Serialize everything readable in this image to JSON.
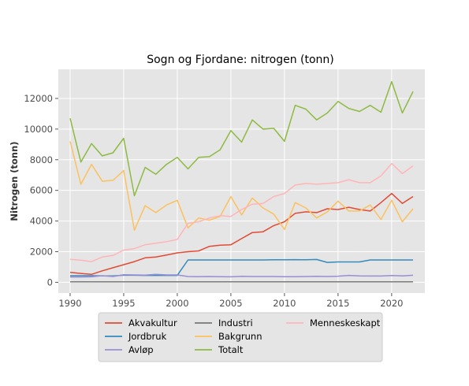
{
  "chart_data": {
    "type": "line",
    "title": "Sogn og Fjordane: nitrogen (tonn)",
    "xlabel": "",
    "ylabel": "Nitrogen (tonn)",
    "xlim": [
      1988.9,
      2023.1
    ],
    "ylim": [
      -700,
      13900
    ],
    "xticks": [
      1990,
      1995,
      2000,
      2005,
      2010,
      2015,
      2020
    ],
    "yticks": [
      0,
      2000,
      4000,
      6000,
      8000,
      10000,
      12000
    ],
    "grid": true,
    "legend_position": "bottom-center",
    "background": "#e5e5e5",
    "x": [
      1990,
      1991,
      1992,
      1993,
      1994,
      1995,
      1996,
      1997,
      1998,
      1999,
      2000,
      2001,
      2002,
      2003,
      2004,
      2005,
      2006,
      2007,
      2008,
      2009,
      2010,
      2011,
      2012,
      2013,
      2014,
      2015,
      2016,
      2017,
      2018,
      2019,
      2020,
      2021,
      2022
    ],
    "series": [
      {
        "name": "Akvakultur",
        "color": "#e24a33",
        "values": [
          650,
          580,
          520,
          750,
          950,
          1150,
          1350,
          1600,
          1650,
          1780,
          1920,
          2000,
          2050,
          2350,
          2420,
          2450,
          2850,
          3250,
          3300,
          3700,
          3950,
          4500,
          4600,
          4550,
          4800,
          4750,
          4900,
          4750,
          4650,
          5200,
          5800,
          5150,
          5600
        ]
      },
      {
        "name": "Jordbruk",
        "color": "#348abd",
        "values": [
          430,
          430,
          430,
          420,
          420,
          460,
          460,
          450,
          450,
          450,
          450,
          1460,
          1460,
          1460,
          1460,
          1460,
          1460,
          1460,
          1460,
          1470,
          1470,
          1480,
          1470,
          1490,
          1300,
          1330,
          1330,
          1330,
          1460,
          1460,
          1460,
          1460,
          1460
        ]
      },
      {
        "name": "Avløp",
        "color": "#988ed5",
        "values": [
          350,
          350,
          360,
          430,
          380,
          500,
          480,
          470,
          520,
          480,
          480,
          380,
          370,
          380,
          370,
          360,
          390,
          380,
          380,
          380,
          370,
          370,
          380,
          390,
          380,
          400,
          450,
          420,
          410,
          410,
          440,
          420,
          460
        ]
      },
      {
        "name": "Industri",
        "color": "#777777",
        "values": [
          30,
          30,
          30,
          30,
          30,
          30,
          30,
          30,
          30,
          30,
          30,
          30,
          30,
          30,
          30,
          30,
          30,
          30,
          30,
          30,
          30,
          30,
          30,
          30,
          30,
          30,
          30,
          30,
          30,
          30,
          30,
          30,
          30
        ]
      },
      {
        "name": "Bakgrunn",
        "color": "#fbc15e",
        "values": [
          9200,
          6400,
          7700,
          6600,
          6650,
          7300,
          3400,
          5000,
          4550,
          5050,
          5350,
          3550,
          4200,
          4050,
          4300,
          5600,
          4400,
          5500,
          4850,
          4450,
          3450,
          5200,
          4850,
          4200,
          4600,
          5300,
          4650,
          4650,
          5050,
          4100,
          5350,
          3950,
          4800
        ]
      },
      {
        "name": "Totalt",
        "color": "#8eba42",
        "values": [
          10700,
          7850,
          9050,
          8250,
          8450,
          9400,
          5650,
          7500,
          7050,
          7700,
          8150,
          7400,
          8150,
          8200,
          8650,
          9900,
          9150,
          10600,
          10000,
          10050,
          9200,
          11550,
          11300,
          10600,
          11050,
          11800,
          11350,
          11150,
          11550,
          11100,
          13100,
          11050,
          12450
        ]
      },
      {
        "name": "Menneskeskapt",
        "color": "#ffb5b8",
        "values": [
          1500,
          1450,
          1350,
          1650,
          1750,
          2100,
          2200,
          2450,
          2550,
          2650,
          2800,
          3850,
          3950,
          4200,
          4350,
          4300,
          4750,
          5100,
          5150,
          5600,
          5800,
          6350,
          6450,
          6400,
          6450,
          6500,
          6700,
          6500,
          6500,
          6950,
          7750,
          7100,
          7600
        ]
      }
    ]
  }
}
